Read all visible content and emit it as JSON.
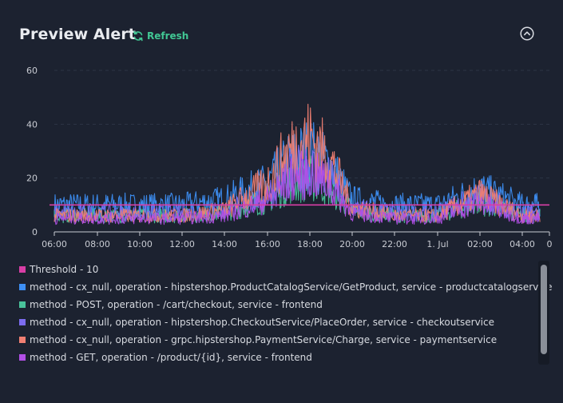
{
  "header": {
    "title": "Preview Alert",
    "refresh_label": "Refresh"
  },
  "colors": {
    "threshold": "#d83ea6",
    "s1": "#3d8ff4",
    "s2": "#49c29a",
    "s3": "#7c6cf0",
    "s4": "#f07f72",
    "s5": "#b14fe6",
    "accent": "#41c794"
  },
  "icons": {
    "refresh": "refresh-icon",
    "collapse": "chevron-up-circle-icon"
  },
  "chart_data": {
    "type": "line",
    "ylim": [
      0,
      60
    ],
    "y_ticks": [
      "0",
      "20",
      "40",
      "60"
    ],
    "x_ticks": [
      "06:00",
      "08:00",
      "10:00",
      "12:00",
      "14:00",
      "16:00",
      "18:00",
      "20:00",
      "22:00",
      "1. Jul",
      "02:00",
      "04:00",
      "0"
    ],
    "threshold": {
      "name": "Threshold - 10",
      "value": 10
    },
    "grid": true,
    "legend_position": "bottom",
    "series": [
      {
        "name": "method - cx_null, operation - hipstershop.ProductCatalogService/GetProduct, service - productcatalogservice",
        "color_key": "s1",
        "x": [
          "06:00",
          "08:00",
          "10:00",
          "12:00",
          "14:00",
          "16:00",
          "17:00",
          "18:00",
          "19:00",
          "20:00",
          "22:00",
          "1. Jul",
          "02:00",
          "04:00"
        ],
        "values": [
          10,
          10,
          10,
          10,
          12,
          18,
          26,
          30,
          24,
          12,
          10,
          10,
          16,
          10
        ]
      },
      {
        "name": "method - POST, operation - /cart/checkout, service - frontend",
        "color_key": "s2",
        "x": [
          "06:00",
          "08:00",
          "10:00",
          "12:00",
          "14:00",
          "16:00",
          "17:00",
          "18:00",
          "19:00",
          "20:00",
          "22:00",
          "1. Jul",
          "02:00",
          "04:00"
        ],
        "values": [
          6,
          6,
          6,
          6,
          7,
          12,
          18,
          20,
          16,
          8,
          6,
          6,
          11,
          6
        ]
      },
      {
        "name": "method - cx_null, operation - hipstershop.CheckoutService/PlaceOrder, service - checkoutservice",
        "color_key": "s3",
        "x": [
          "06:00",
          "08:00",
          "10:00",
          "12:00",
          "14:00",
          "16:00",
          "17:00",
          "18:00",
          "19:00",
          "20:00",
          "22:00",
          "1. Jul",
          "02:00",
          "04:00"
        ],
        "values": [
          7,
          7,
          7,
          7,
          8,
          14,
          21,
          24,
          19,
          9,
          7,
          7,
          13,
          7
        ]
      },
      {
        "name": "method - cx_null, operation - grpc.hipstershop.PaymentService/Charge, service - paymentservice",
        "color_key": "s4",
        "x": [
          "06:00",
          "08:00",
          "10:00",
          "12:00",
          "14:00",
          "16:00",
          "17:00",
          "18:00",
          "19:00",
          "20:00",
          "22:00",
          "1. Jul",
          "02:00",
          "04:00"
        ],
        "values": [
          6,
          6,
          6,
          6,
          8,
          18,
          30,
          35,
          26,
          9,
          6,
          6,
          14,
          6
        ]
      },
      {
        "name": "method - GET, operation - /product/{id}, service - frontend",
        "color_key": "s5",
        "x": [
          "06:00",
          "08:00",
          "10:00",
          "12:00",
          "14:00",
          "16:00",
          "17:00",
          "18:00",
          "19:00",
          "20:00",
          "22:00",
          "1. Jul",
          "02:00",
          "04:00"
        ],
        "values": [
          5,
          5,
          5,
          5,
          6,
          12,
          19,
          22,
          17,
          7,
          5,
          5,
          11,
          5
        ]
      }
    ]
  }
}
